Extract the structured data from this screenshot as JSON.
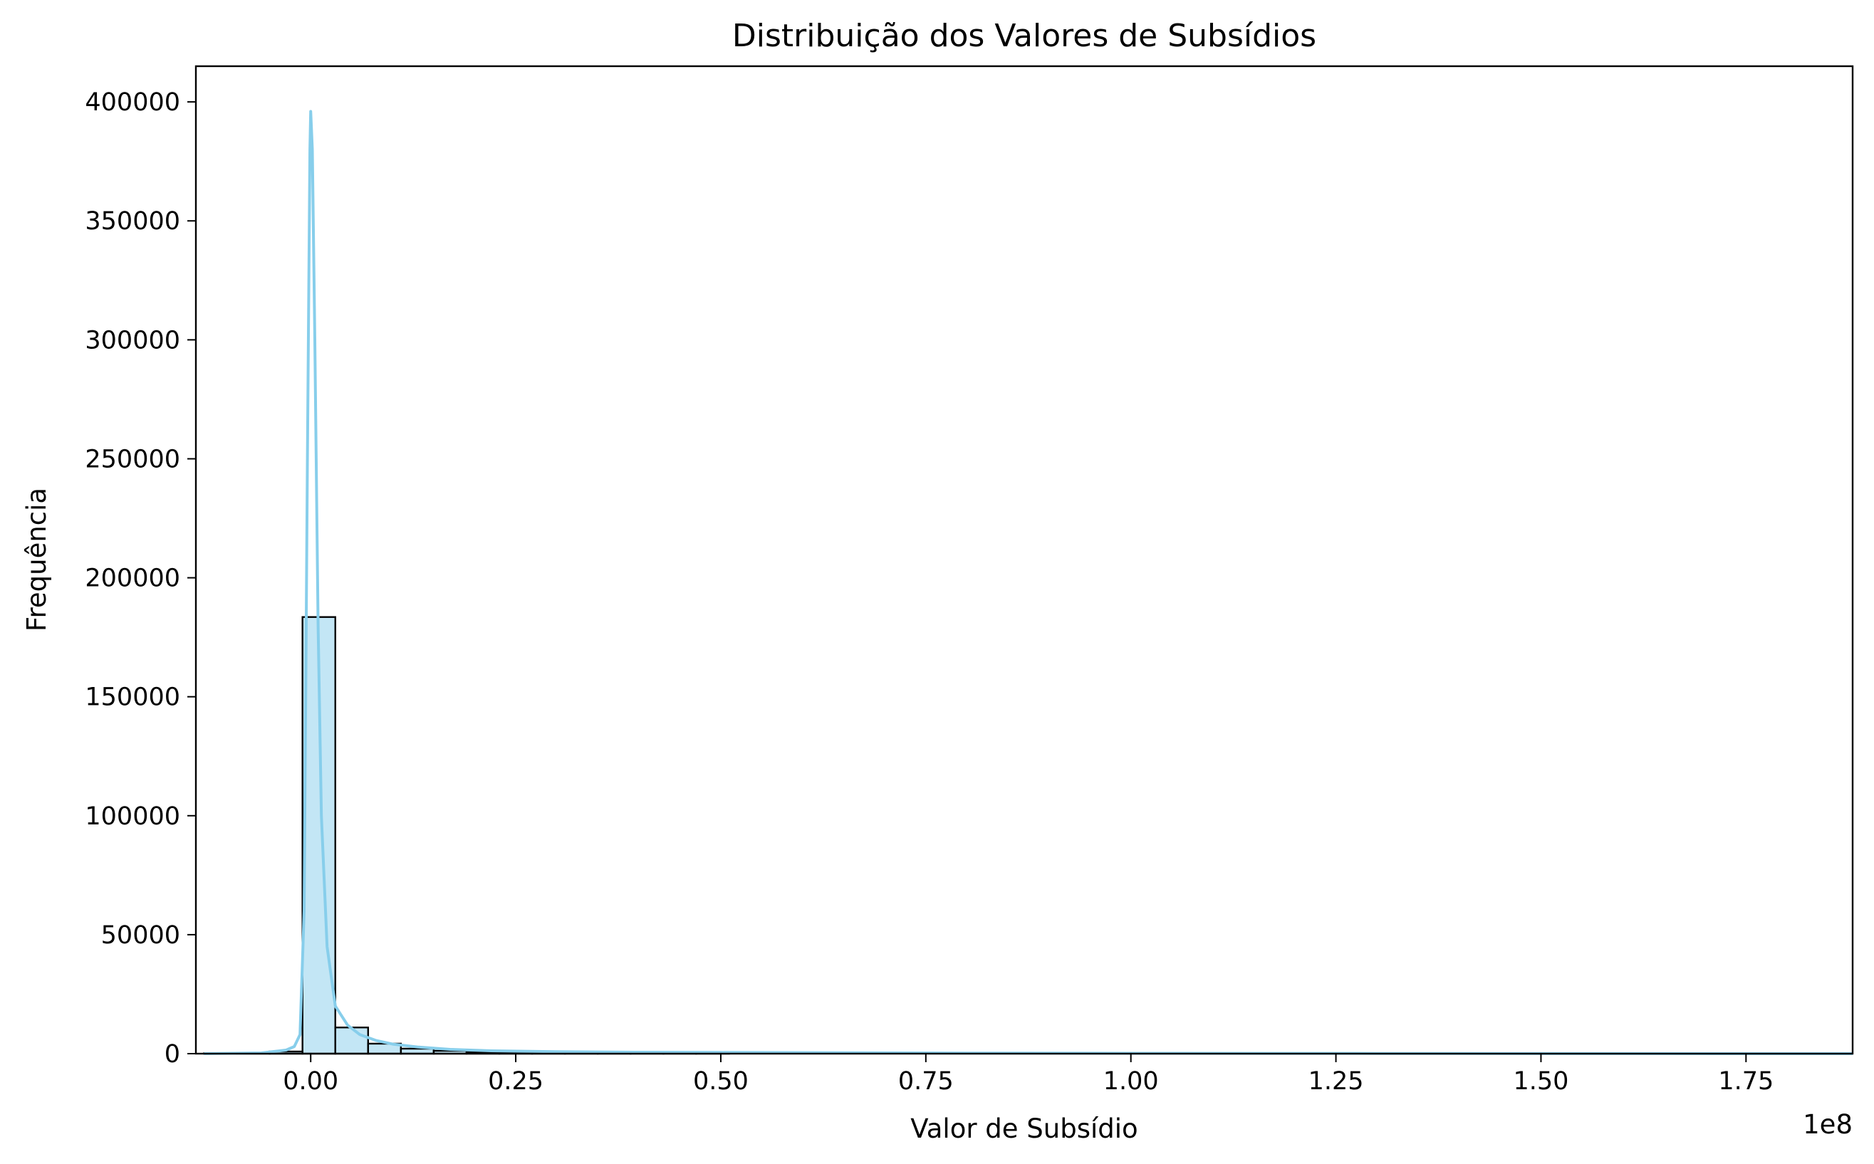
{
  "chart_data": {
    "type": "histogram",
    "title": "Distribuição dos Valores de Subsídios",
    "xlabel": "Valor de Subsídio",
    "ylabel": "Frequência",
    "x_offset_label": "1e8",
    "x_scale_factor": 100000000,
    "xlim": [
      -0.14,
      1.88
    ],
    "ylim": [
      0,
      415000
    ],
    "x_ticks": [
      0.0,
      0.25,
      0.5,
      0.75,
      1.0,
      1.25,
      1.5,
      1.75
    ],
    "x_tick_labels": [
      "0.00",
      "0.25",
      "0.50",
      "0.75",
      "1.00",
      "1.25",
      "1.50",
      "1.75"
    ],
    "y_ticks": [
      0,
      50000,
      100000,
      150000,
      200000,
      250000,
      300000,
      350000,
      400000
    ],
    "y_tick_labels": [
      "0",
      "50000",
      "100000",
      "150000",
      "200000",
      "250000",
      "300000",
      "350000",
      "400000"
    ],
    "bin_edges": [
      -0.13,
      -0.09,
      -0.05,
      -0.01,
      0.03,
      0.07,
      0.11,
      0.15,
      0.19,
      0.23,
      0.27,
      0.31,
      0.35,
      0.39,
      0.43,
      0.47,
      0.51
    ],
    "bin_counts": [
      150,
      300,
      900,
      183500,
      11000,
      4200,
      2100,
      1200,
      700,
      400,
      250,
      150,
      100,
      80,
      60,
      40
    ],
    "kde": {
      "x": [
        -0.13,
        -0.06,
        -0.03,
        -0.02,
        -0.013,
        -0.008,
        -0.004,
        -0.001,
        0.0,
        0.002,
        0.005,
        0.009,
        0.013,
        0.02,
        0.03,
        0.045,
        0.06,
        0.08,
        0.1,
        0.13,
        0.17,
        0.22,
        0.3,
        0.4,
        0.5,
        0.65,
        0.8,
        1.0,
        1.3,
        1.6,
        1.88
      ],
      "y": [
        0,
        300,
        1500,
        3000,
        8000,
        60000,
        250000,
        380000,
        396000,
        380000,
        300000,
        180000,
        100000,
        45000,
        20000,
        12000,
        8000,
        5500,
        4000,
        2800,
        1800,
        1200,
        800,
        600,
        500,
        350,
        250,
        150,
        80,
        40,
        0
      ]
    },
    "colors": {
      "bar_fill": "#87ceeb",
      "bar_fill_opacity": 0.5,
      "bar_edge": "#000000",
      "kde_line": "#87ceeb"
    },
    "grid": false,
    "legend": "none"
  }
}
